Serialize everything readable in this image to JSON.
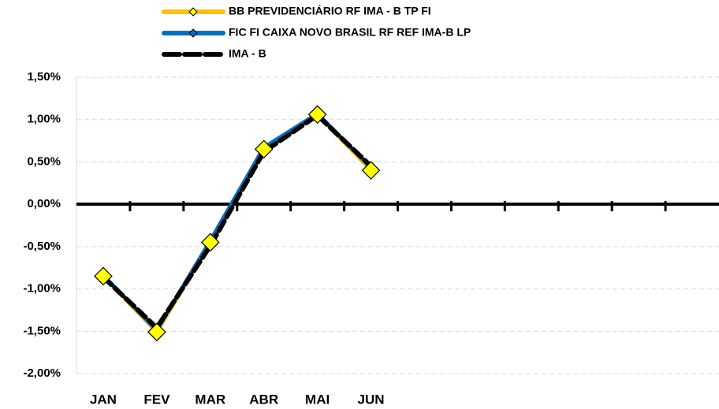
{
  "chart_data": {
    "type": "line",
    "categories": [
      "JAN",
      "FEV",
      "MAR",
      "ABR",
      "MAI",
      "JUN",
      null,
      null,
      null,
      null,
      null,
      null
    ],
    "series": [
      {
        "name": "BB PREVIDENCIÁRIO RF IMA - B TP FI",
        "color": "#FFC000",
        "marker_color": "#FFFF00",
        "values": [
          -0.85,
          -1.51,
          -0.45,
          0.65,
          1.06,
          0.4,
          null,
          null,
          null,
          null,
          null,
          null
        ]
      },
      {
        "name": "FIC FI CAIXA NOVO BRASIL RF REF IMA-B LP",
        "color": "#0070C0",
        "values": [
          -0.84,
          -1.49,
          -0.43,
          0.67,
          1.07,
          0.43,
          null,
          null,
          null,
          null,
          null,
          null
        ]
      },
      {
        "name": "IMA - B",
        "color": "#000000",
        "values": [
          -0.86,
          -1.46,
          -0.49,
          0.62,
          1.05,
          0.45,
          null,
          null,
          null,
          null,
          null,
          null
        ]
      }
    ],
    "ylim": [
      -2,
      1.5
    ],
    "yticks": [
      {
        "value": -2,
        "label": "-2,00%"
      },
      {
        "value": -1.5,
        "label": "-1,50%"
      },
      {
        "value": -1,
        "label": "-1,00%"
      },
      {
        "value": -0.5,
        "label": "-0,50%"
      },
      {
        "value": 0,
        "label": "0,00%"
      },
      {
        "value": 0.5,
        "label": "0,50%"
      },
      {
        "value": 1,
        "label": "1,00%"
      },
      {
        "value": 1.5,
        "label": "1,50%"
      }
    ],
    "grid": true,
    "legend": "top"
  }
}
